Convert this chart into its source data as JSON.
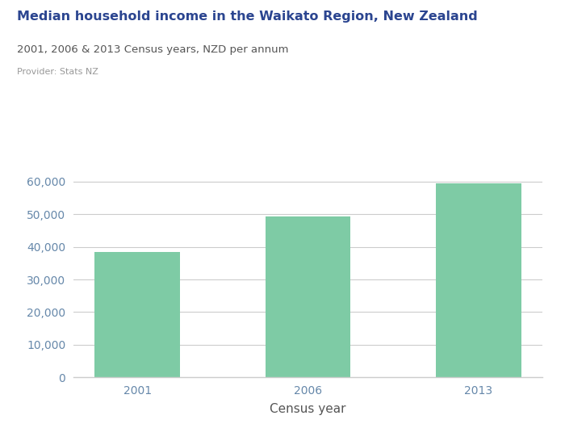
{
  "title": "Median household income in the Waikato Region, New Zealand",
  "subtitle": "2001, 2006 & 2013 Census years, NZD per annum",
  "provider": "Provider: Stats NZ",
  "xlabel": "Census year",
  "categories": [
    "2001",
    "2006",
    "2013"
  ],
  "values": [
    38400,
    49300,
    59500
  ],
  "bar_color": "#7ecba5",
  "title_color": "#2b4590",
  "subtitle_color": "#555555",
  "provider_color": "#999999",
  "axis_label_color": "#555555",
  "tick_color": "#6688aa",
  "grid_color": "#cccccc",
  "background_color": "#ffffff",
  "ylim": [
    0,
    65000
  ],
  "yticks": [
    0,
    10000,
    20000,
    30000,
    40000,
    50000,
    60000
  ],
  "figurenz_bg": "#6b6bca",
  "figurenz_text": "#ffffff"
}
